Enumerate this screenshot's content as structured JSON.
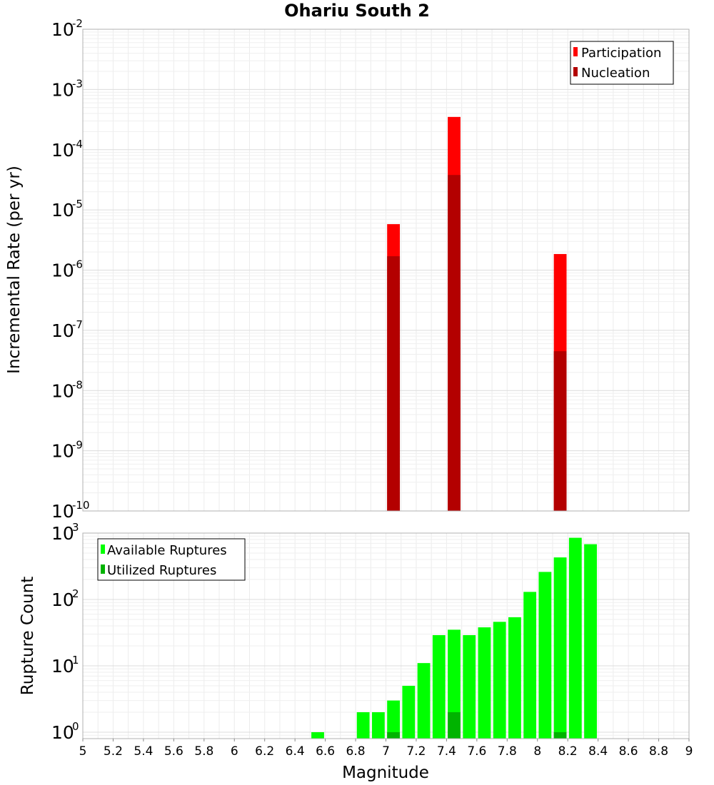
{
  "title": "Ohariu South 2",
  "xlabel": "Magnitude",
  "x_ticks": [
    "5",
    "5.2",
    "5.4",
    "5.6",
    "5.8",
    "6",
    "6.2",
    "6.4",
    "6.6",
    "6.8",
    "7",
    "7.2",
    "7.4",
    "7.6",
    "7.8",
    "8",
    "8.2",
    "8.4",
    "8.6",
    "8.8",
    "9"
  ],
  "top_panel": {
    "ylabel": "Incremental Rate (per yr)",
    "y_tick_exponents": [
      "-10",
      "-9",
      "-8",
      "-7",
      "-6",
      "-5",
      "-4",
      "-3",
      "-2"
    ],
    "legend": [
      "Participation",
      "Nucleation"
    ],
    "colors": {
      "participation": "#ff0000",
      "nucleation": "#b30000"
    }
  },
  "bottom_panel": {
    "ylabel": "Rupture Count",
    "y_tick_exponents": [
      "0",
      "1",
      "2",
      "3"
    ],
    "legend": [
      "Available Ruptures",
      "Utilized Ruptures"
    ],
    "colors": {
      "available": "#00ff00",
      "utilized": "#00b300"
    }
  },
  "chart_data": [
    {
      "type": "bar",
      "title": "Ohariu South 2",
      "xlabel": "Magnitude",
      "ylabel": "Incremental Rate (per yr)",
      "yscale": "log",
      "xlim": [
        5,
        9
      ],
      "ylim": [
        1e-10,
        0.01
      ],
      "bin_width": 0.1,
      "grid": true,
      "legend_position": "top-right",
      "x": [
        7.05,
        7.45,
        8.15
      ],
      "series": [
        {
          "name": "Participation",
          "color": "#ff0000",
          "values": [
            5.8e-06,
            0.00035,
            1.85e-06
          ]
        },
        {
          "name": "Nucleation",
          "color": "#b30000",
          "values": [
            1.7e-06,
            3.8e-05,
            4.5e-08
          ]
        }
      ]
    },
    {
      "type": "bar",
      "xlabel": "Magnitude",
      "ylabel": "Rupture Count",
      "yscale": "log",
      "xlim": [
        5,
        9
      ],
      "ylim": [
        0.8,
        1000
      ],
      "bin_width": 0.1,
      "grid": true,
      "legend_position": "top-left",
      "series": [
        {
          "name": "Available Ruptures",
          "color": "#00ff00",
          "x": [
            6.55,
            6.85,
            6.95,
            7.05,
            7.15,
            7.25,
            7.35,
            7.45,
            7.55,
            7.65,
            7.75,
            7.85,
            7.95,
            8.05,
            8.15,
            8.25,
            8.35
          ],
          "values": [
            1,
            2,
            2,
            3,
            5,
            11,
            29,
            35,
            29,
            38,
            46,
            54,
            130,
            260,
            430,
            850,
            680
          ]
        },
        {
          "name": "Utilized Ruptures",
          "color": "#00b300",
          "x": [
            7.05,
            7.45,
            8.15
          ],
          "values": [
            1,
            2,
            1
          ]
        }
      ]
    }
  ]
}
